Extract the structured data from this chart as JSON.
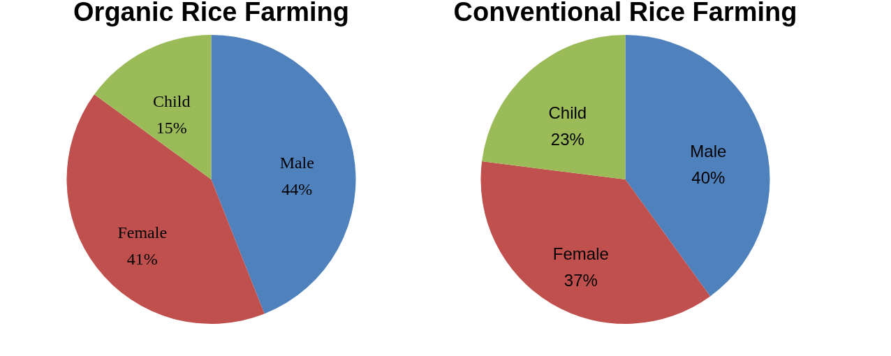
{
  "chart_data": [
    {
      "type": "pie",
      "title": "Organic Rice Farming",
      "categories": [
        "Male",
        "Female",
        "Child"
      ],
      "values": [
        44,
        41,
        15
      ],
      "value_labels": [
        "44%",
        "41%",
        "15%"
      ],
      "colors": [
        "#4f81bd",
        "#c0504d",
        "#9bbb59"
      ]
    },
    {
      "type": "pie",
      "title": "Conventional Rice Farming",
      "categories": [
        "Male",
        "Female",
        "Child"
      ],
      "values": [
        40,
        37,
        23
      ],
      "value_labels": [
        "40%",
        "37%",
        "23%"
      ],
      "colors": [
        "#4f81bd",
        "#c0504d",
        "#9bbb59"
      ]
    }
  ]
}
